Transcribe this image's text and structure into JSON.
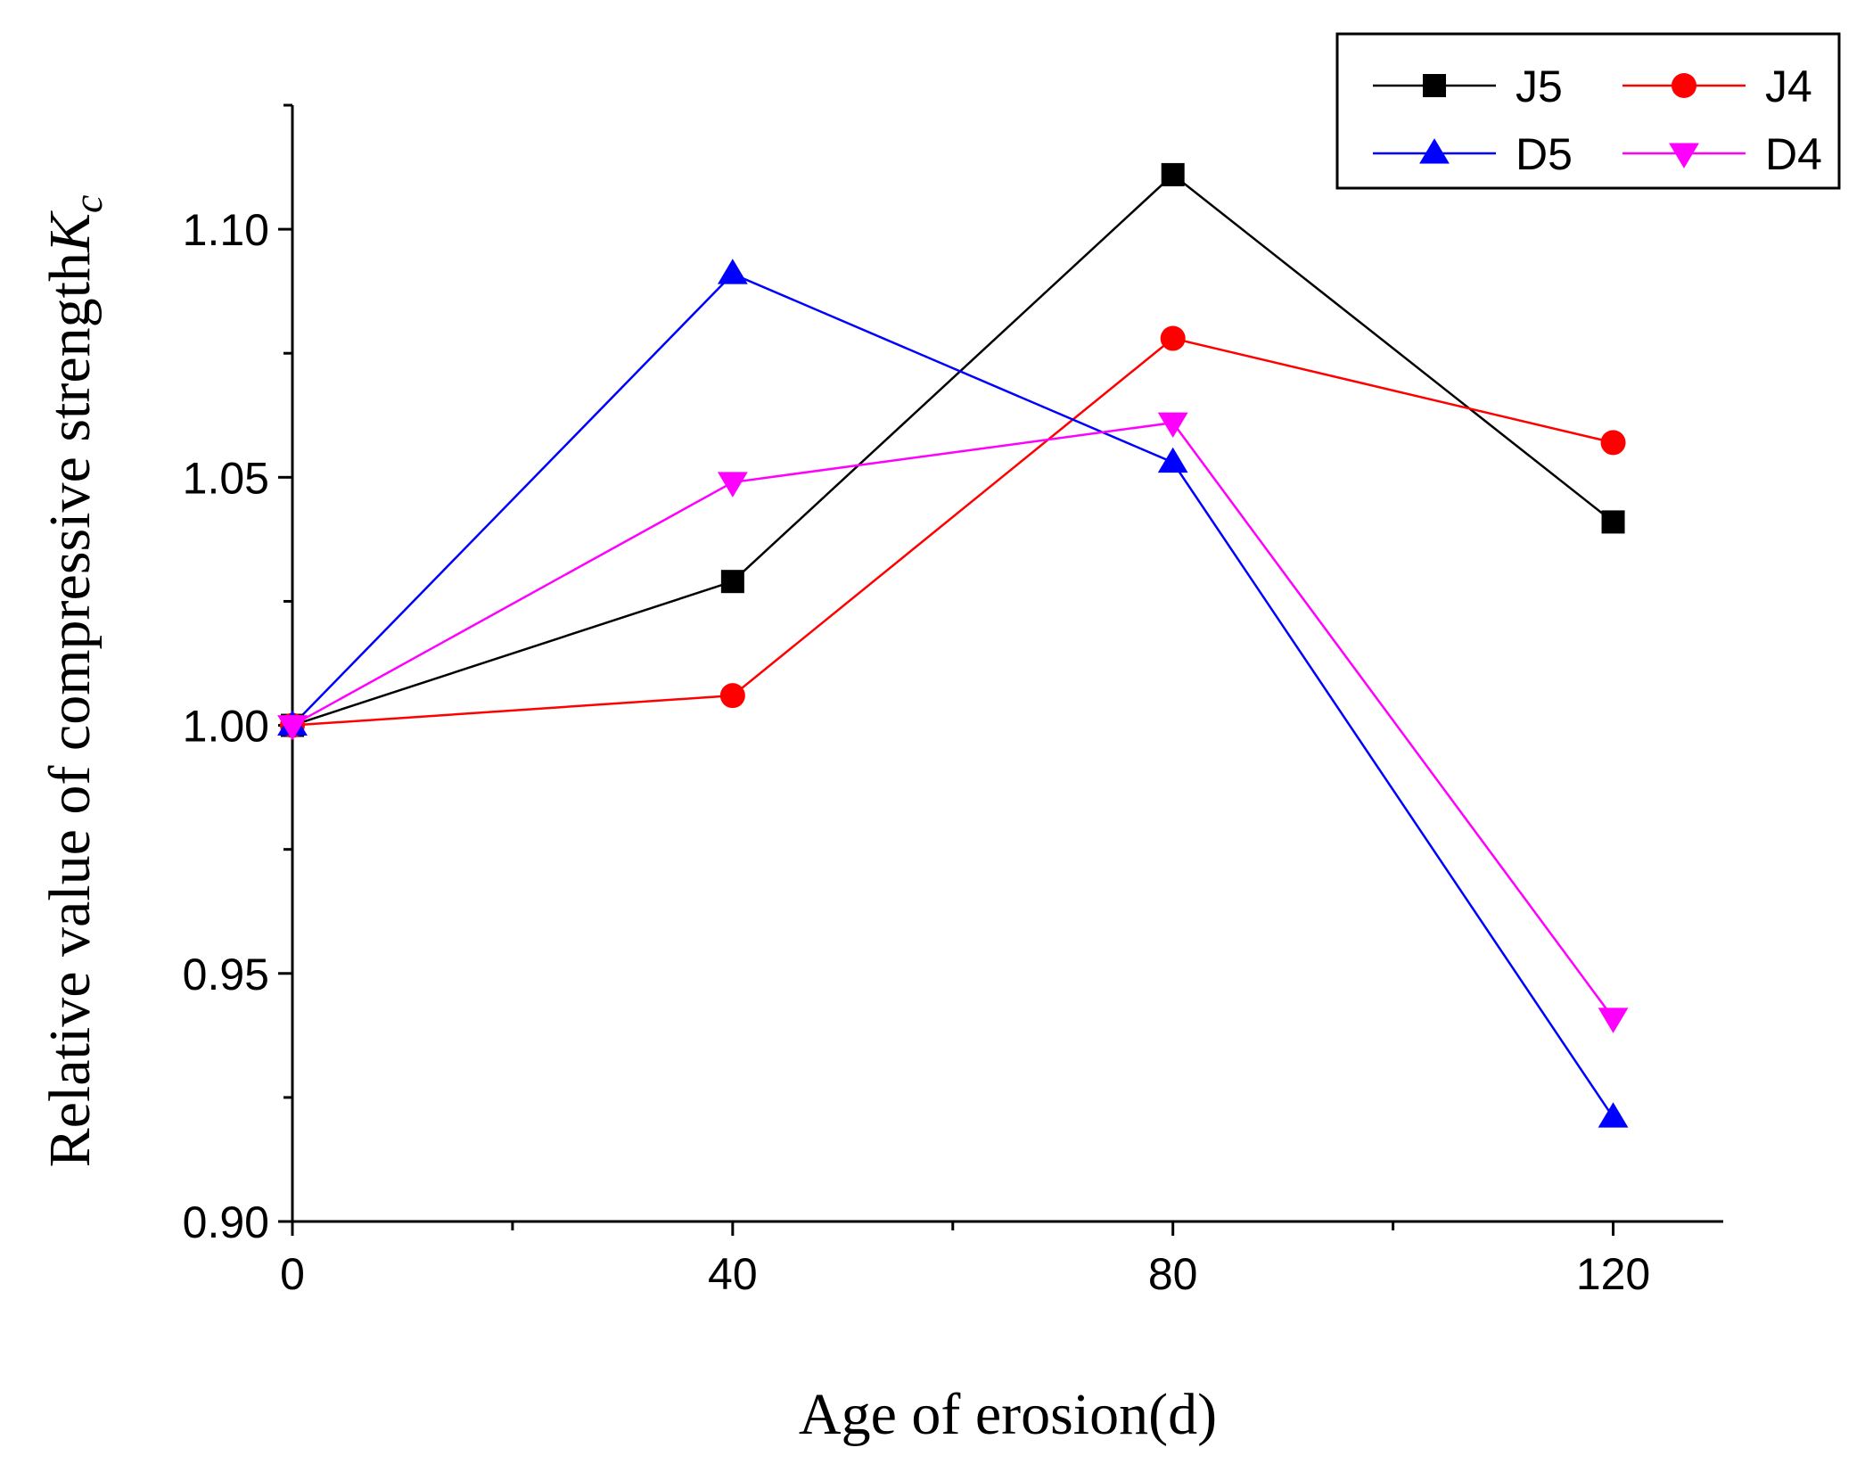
{
  "chart_data": {
    "type": "line",
    "title": "",
    "xlabel": "Age of erosion(d)",
    "ylabel": "Relative value of compressive strength",
    "ylabel_symbol": "K",
    "ylabel_subscript": "c",
    "xlim": [
      0,
      130
    ],
    "ylim": [
      0.9,
      1.125
    ],
    "x_ticks": [
      0,
      40,
      80,
      120
    ],
    "x_minor_ticks": [
      20,
      60,
      100
    ],
    "x_tick_labels": [
      "0",
      "40",
      "80",
      "120"
    ],
    "y_ticks": [
      0.9,
      0.95,
      1.0,
      1.05,
      1.1
    ],
    "y_minor_ticks": [
      0.925,
      0.975,
      1.025,
      1.075,
      1.125
    ],
    "y_tick_labels": [
      "0.90",
      "0.95",
      "1.00",
      "1.05",
      "1.10"
    ],
    "grid": false,
    "legend_position": "top-right",
    "x": [
      0,
      40,
      80,
      120
    ],
    "series": [
      {
        "name": "J5",
        "color": "#000000",
        "marker": "square",
        "values": [
          1.0,
          1.029,
          1.111,
          1.041
        ]
      },
      {
        "name": "J4",
        "color": "#ff0000",
        "marker": "circle",
        "values": [
          1.0,
          1.006,
          1.078,
          1.057
        ]
      },
      {
        "name": "D5",
        "color": "#0000ff",
        "marker": "triangle-up",
        "values": [
          1.0,
          1.091,
          1.053,
          0.921
        ]
      },
      {
        "name": "D4",
        "color": "#ff00ff",
        "marker": "triangle-down",
        "values": [
          1.0,
          1.049,
          1.061,
          0.941
        ]
      }
    ]
  }
}
